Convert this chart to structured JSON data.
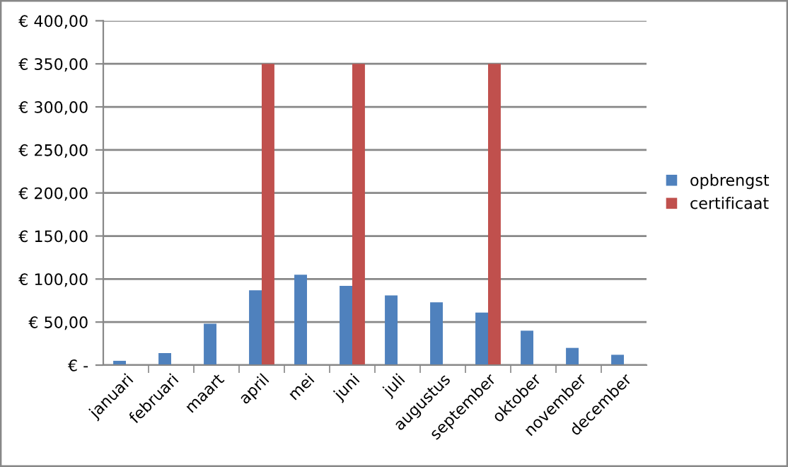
{
  "chart_data": {
    "type": "bar",
    "categories": [
      "januari",
      "februari",
      "maart",
      "april",
      "mei",
      "juni",
      "juli",
      "augustus",
      "september",
      "oktober",
      "november",
      "december"
    ],
    "series": [
      {
        "name": "opbrengst",
        "color": "#4f81bd",
        "values": [
          5,
          14,
          48,
          87,
          105,
          92,
          81,
          73,
          61,
          40,
          20,
          12
        ]
      },
      {
        "name": "certificaat",
        "color": "#c0504d",
        "values": [
          null,
          null,
          null,
          350,
          null,
          350,
          null,
          null,
          350,
          null,
          null,
          null
        ]
      }
    ],
    "ylim": [
      0,
      400
    ],
    "yticks": [
      {
        "value": 0,
        "label": "€ -"
      },
      {
        "value": 50,
        "label": "€ 50,00"
      },
      {
        "value": 100,
        "label": "€ 100,00"
      },
      {
        "value": 150,
        "label": "€ 150,00"
      },
      {
        "value": 200,
        "label": "€ 200,00"
      },
      {
        "value": 250,
        "label": "€ 250,00"
      },
      {
        "value": 300,
        "label": "€ 300,00"
      },
      {
        "value": 350,
        "label": "€ 350,00"
      },
      {
        "value": 400,
        "label": "€ 400,00"
      }
    ],
    "grid": "y",
    "legend": "right"
  }
}
